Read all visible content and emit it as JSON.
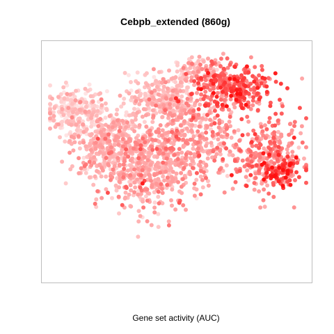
{
  "chart_data": {
    "type": "scatter",
    "title": "Cebpb_extended (860g)",
    "xlabel": "Gene set activity (AUC)",
    "ylabel": "",
    "axes_shown": false,
    "grid": false,
    "legend": "none",
    "colors": {
      "low": "#ffe4e4",
      "mid": "#ff9a9a",
      "high": "#ff1010",
      "box": "#bdbdbd"
    },
    "clusters": [
      {
        "name": "",
        "cx": 10,
        "cy": 72,
        "sx": 6,
        "sy": 5,
        "n": 260,
        "level": 0.15
      },
      {
        "name": "",
        "cx": 22,
        "cy": 58,
        "sx": 7,
        "sy": 7,
        "n": 380,
        "level": 0.3
      },
      {
        "name": "",
        "cx": 38,
        "cy": 45,
        "sx": 8,
        "sy": 9,
        "n": 420,
        "level": 0.38
      },
      {
        "name": "",
        "cx": 44,
        "cy": 78,
        "sx": 7,
        "sy": 5,
        "n": 260,
        "level": 0.25
      },
      {
        "name": "",
        "cx": 55,
        "cy": 60,
        "sx": 9,
        "sy": 10,
        "n": 420,
        "level": 0.42
      },
      {
        "name": "",
        "cx": 72,
        "cy": 82,
        "sx": 8,
        "sy": 5,
        "n": 300,
        "level": 0.7
      },
      {
        "name": "",
        "cx": 85,
        "cy": 52,
        "sx": 7,
        "sy": 8,
        "n": 300,
        "level": 0.55
      },
      {
        "name": "",
        "cx": 90,
        "cy": 45,
        "sx": 3,
        "sy": 3,
        "n": 60,
        "level": 0.85
      },
      {
        "name": "",
        "cx": 58,
        "cy": 90,
        "sx": 5,
        "sy": 3,
        "n": 100,
        "level": 0.35
      }
    ]
  }
}
